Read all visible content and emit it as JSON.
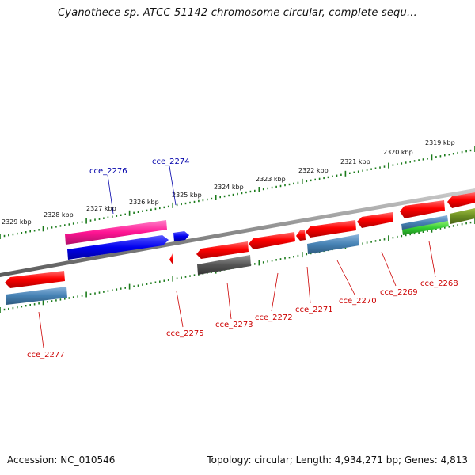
{
  "title": "Cyanothece sp. ATCC 51142 chromosome circular, complete sequ...",
  "footer": {
    "accession": "Accession: NC_010546",
    "summary": "Topology: circular; Length: 4,934,271 bp; Genes: 4,813"
  },
  "colors": {
    "backbone": "#8a8a8a",
    "ticks": "#1a7a1a",
    "label_plus": "#0000aa",
    "label_minus": "#cc0000"
  },
  "ruler": {
    "labels": [
      "2329 kbp",
      "2328 kbp",
      "2327 kbp",
      "2326 kbp",
      "2325 kbp",
      "2324 kbp",
      "2323 kbp",
      "2322 kbp",
      "2321 kbp",
      "2320 kbp",
      "2319 kbp"
    ]
  },
  "genes": [
    {
      "label": "cce_2276",
      "strand": "+"
    },
    {
      "label": "cce_2274",
      "strand": "+"
    },
    {
      "label": "cce_2277",
      "strand": "-"
    },
    {
      "label": "cce_2275",
      "strand": "-"
    },
    {
      "label": "cce_2273",
      "strand": "-"
    },
    {
      "label": "cce_2272",
      "strand": "-"
    },
    {
      "label": "cce_2271",
      "strand": "-"
    },
    {
      "label": "cce_2270",
      "strand": "-"
    },
    {
      "label": "cce_2269",
      "strand": "-"
    },
    {
      "label": "cce_2268",
      "strand": "-"
    }
  ]
}
